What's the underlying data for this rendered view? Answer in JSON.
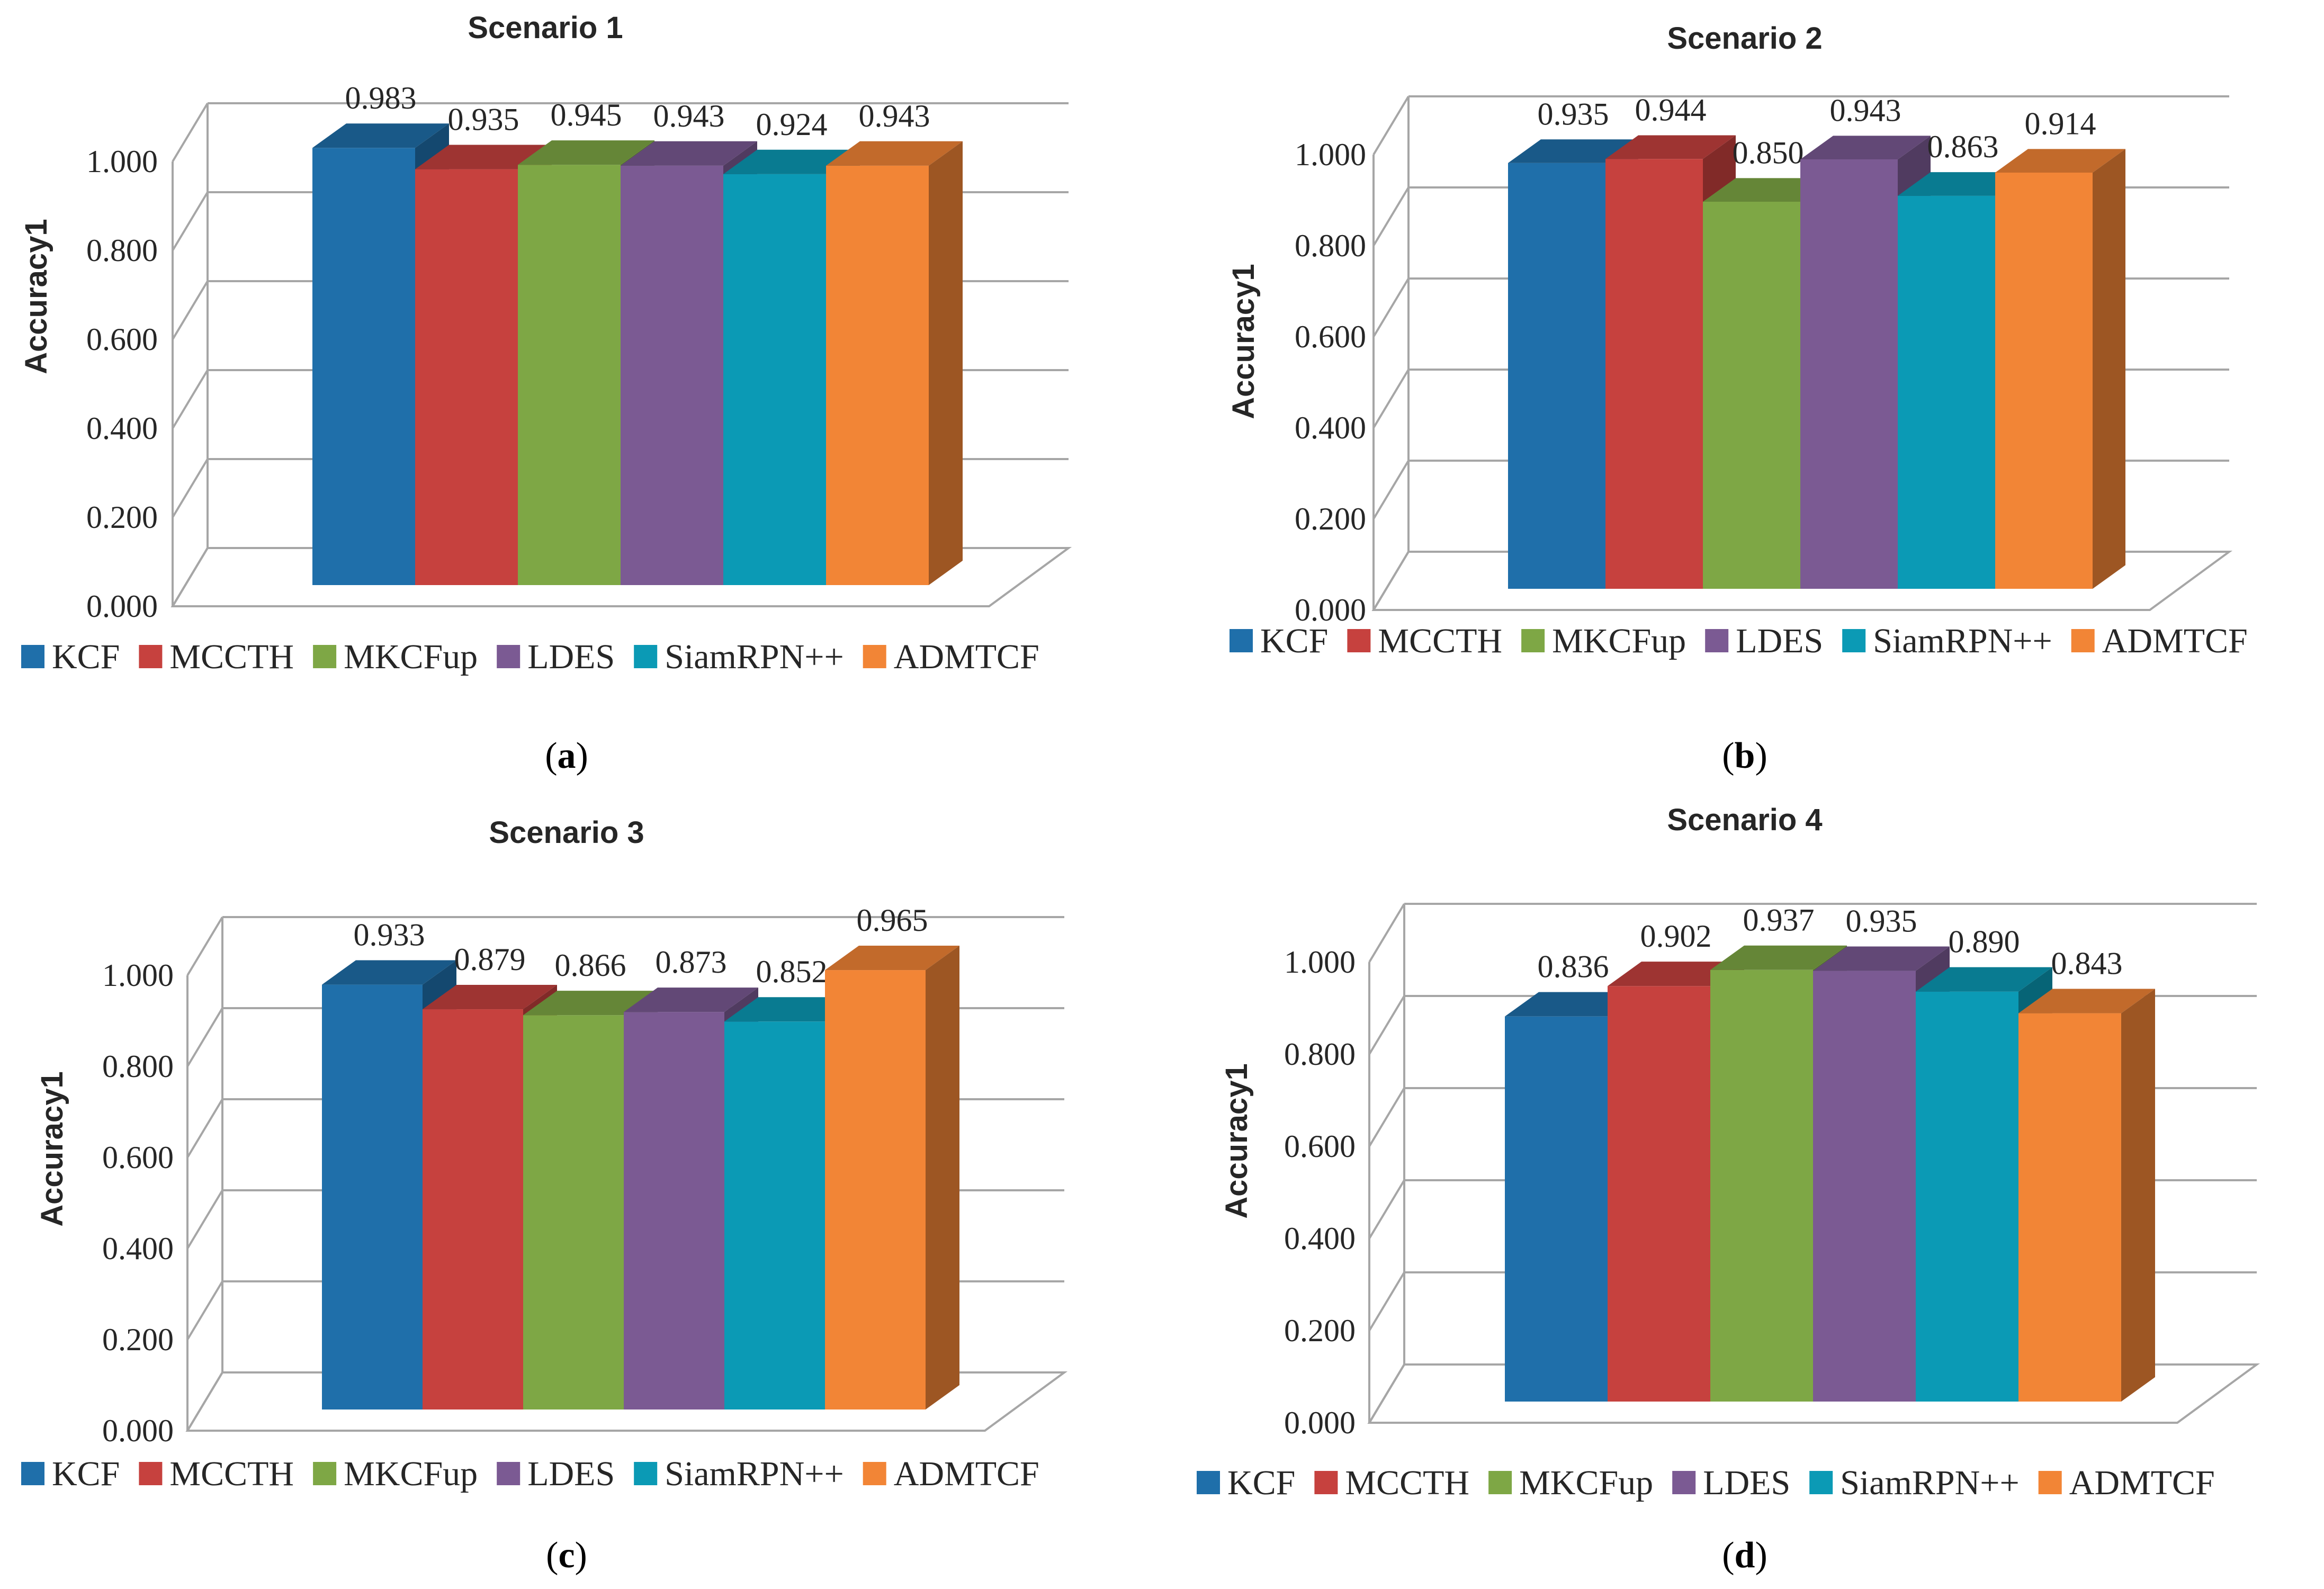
{
  "colors": {
    "KCF": "#1f6faa",
    "MCCTH": "#c6413e",
    "MKCFup": "#7ea745",
    "LDES": "#7b5a93",
    "SiamRPN++": "#0b9ab5",
    "ADMTCF": "#f28536",
    "grid": "#a6a6a6",
    "text": "#262626"
  },
  "legend": [
    "KCF",
    "MCCTH",
    "MKCFup",
    "LDES",
    "SiamRPN++",
    "ADMTCF"
  ],
  "chart_data": [
    {
      "type": "bar",
      "panel": "a",
      "panel_label": "(a)",
      "panel_letter": "a",
      "title": "Scenario 1",
      "ylabel": "Accuracy1",
      "xlabel": "",
      "ylim": [
        0,
        1
      ],
      "yticks": [
        "0.000",
        "0.200",
        "0.400",
        "0.600",
        "0.800",
        "1.000"
      ],
      "categories": [
        "KCF",
        "MCCTH",
        "MKCFup",
        "LDES",
        "SiamRPN++",
        "ADMTCF"
      ],
      "values": [
        0.983,
        0.935,
        0.945,
        0.943,
        0.924,
        0.943
      ],
      "labels": [
        "0.983",
        "0.935",
        "0.945",
        "0.943",
        "0.924",
        "0.943"
      ],
      "grid": true,
      "legend_position": "bottom"
    },
    {
      "type": "bar",
      "panel": "b",
      "panel_label": "(b)",
      "panel_letter": "b",
      "title": "Scenario 2",
      "ylabel": "Accuracy1",
      "xlabel": "",
      "ylim": [
        0,
        1
      ],
      "yticks": [
        "0.000",
        "0.200",
        "0.400",
        "0.600",
        "0.800",
        "1.000"
      ],
      "categories": [
        "KCF",
        "MCCTH",
        "MKCFup",
        "LDES",
        "SiamRPN++",
        "ADMTCF"
      ],
      "values": [
        0.935,
        0.944,
        0.85,
        0.943,
        0.863,
        0.914
      ],
      "labels": [
        "0.935",
        "0.944",
        "0.850",
        "0.943",
        "0.863",
        "0.914"
      ],
      "grid": true,
      "legend_position": "bottom"
    },
    {
      "type": "bar",
      "panel": "c",
      "panel_label": "(c)",
      "panel_letter": "c",
      "title": "Scenario 3",
      "ylabel": "Accuracy1",
      "xlabel": "",
      "ylim": [
        0,
        1
      ],
      "yticks": [
        "0.000",
        "0.200",
        "0.400",
        "0.600",
        "0.800",
        "1.000"
      ],
      "categories": [
        "KCF",
        "MCCTH",
        "MKCFup",
        "LDES",
        "SiamRPN++",
        "ADMTCF"
      ],
      "values": [
        0.933,
        0.879,
        0.866,
        0.873,
        0.852,
        0.965
      ],
      "labels": [
        "0.933",
        "0.879",
        "0.866",
        "0.873",
        "0.852",
        "0.965"
      ],
      "grid": true,
      "legend_position": "bottom"
    },
    {
      "type": "bar",
      "panel": "d",
      "panel_label": "(d)",
      "panel_letter": "d",
      "title": "Scenario 4",
      "ylabel": "Accuracy1",
      "xlabel": "",
      "ylim": [
        0,
        1
      ],
      "yticks": [
        "0.000",
        "0.200",
        "0.400",
        "0.600",
        "0.800",
        "1.000"
      ],
      "categories": [
        "KCF",
        "MCCTH",
        "MKCFup",
        "LDES",
        "SiamRPN++",
        "ADMTCF"
      ],
      "values": [
        0.836,
        0.902,
        0.937,
        0.935,
        0.89,
        0.843
      ],
      "labels": [
        "0.836",
        "0.902",
        "0.937",
        "0.935",
        "0.890",
        "0.843"
      ],
      "grid": true,
      "legend_position": "bottom"
    }
  ]
}
